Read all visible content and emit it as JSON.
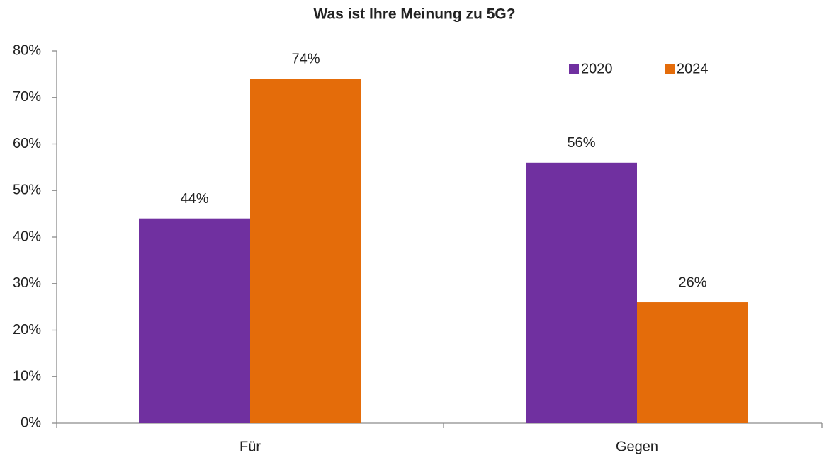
{
  "chart_data": {
    "type": "bar",
    "title": "Was ist Ihre Meinung zu 5G?",
    "categories": [
      "Für",
      "Gegen"
    ],
    "series": [
      {
        "name": "2020",
        "color": "#7030a0",
        "values": [
          44,
          56
        ],
        "value_labels": [
          "44%",
          "56%"
        ]
      },
      {
        "name": "2024",
        "color": "#e46c0a",
        "values": [
          74,
          26
        ],
        "value_labels": [
          "74%",
          "26%"
        ]
      }
    ],
    "ylim": [
      0,
      80
    ],
    "yticks": [
      {
        "value": 0,
        "label": "0%"
      },
      {
        "value": 10,
        "label": "10%"
      },
      {
        "value": 20,
        "label": "20%"
      },
      {
        "value": 30,
        "label": "30%"
      },
      {
        "value": 40,
        "label": "40%"
      },
      {
        "value": 50,
        "label": "50%"
      },
      {
        "value": 60,
        "label": "60%"
      },
      {
        "value": 70,
        "label": "70%"
      },
      {
        "value": 80,
        "label": "80%"
      }
    ],
    "legend": "upper right",
    "grid": false
  }
}
